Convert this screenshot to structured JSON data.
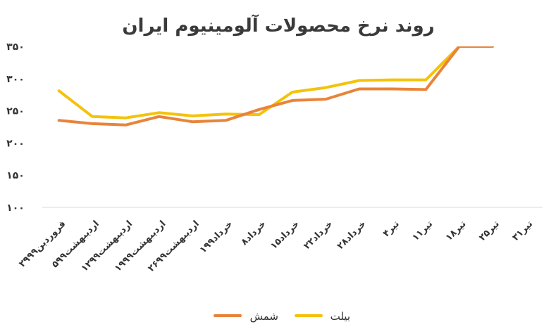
{
  "chart_data": {
    "type": "line",
    "title": "روند نرخ محصولات آلومینیوم ایران",
    "categories": [
      "۲۹فروردین۹۹",
      "۵اردیبهشت۹۹",
      "۱۲اردیبهشت۹۹",
      "۱۹اردیبهشت۹۹",
      "۲۶اردیبهشت۹۹",
      "۱خرداد۹۹",
      "۸خرداد",
      "۱۵خرداد",
      "۲۲خرداد",
      "۲۸خرداد",
      "۴تیر",
      "۱۱تیر",
      "۱۸تیر",
      "۲۵تیر",
      "۳۱تیر"
    ],
    "ylim": [
      100,
      350
    ],
    "yticks": [
      100,
      150,
      200,
      250,
      300,
      350
    ],
    "ytick_labels": [
      "۱۰۰",
      "۱۵۰",
      "۲۰۰",
      "۲۵۰",
      "۳۰۰",
      "۳۵۰"
    ],
    "series": [
      {
        "name": "شمش",
        "color": "#E8843A",
        "values": [
          235,
          230,
          228,
          241,
          233,
          235,
          252,
          266,
          268,
          284,
          284,
          283,
          350,
          350,
          null
        ]
      },
      {
        "name": "بیلت",
        "color": "#F5C20B",
        "values": [
          281,
          241,
          239,
          247,
          242,
          245,
          244,
          279,
          286,
          297,
          298,
          298,
          350,
          null,
          null
        ]
      }
    ],
    "legend": "bottom",
    "grid": false
  }
}
